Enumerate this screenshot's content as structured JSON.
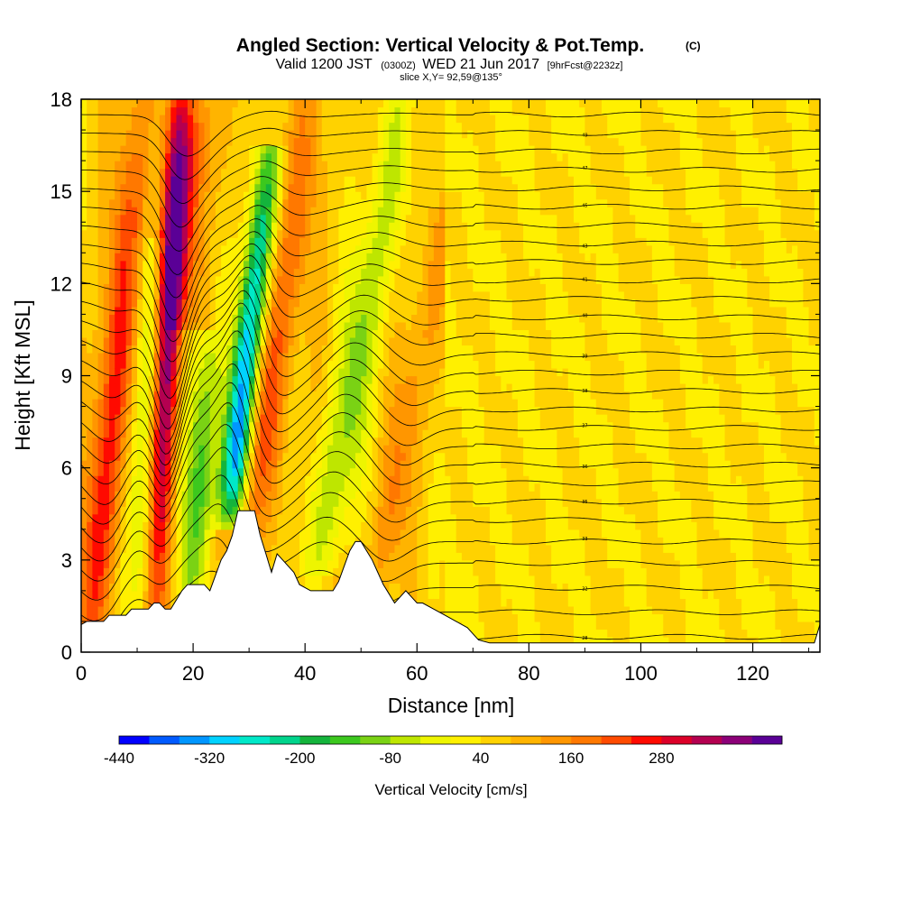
{
  "chart_data": {
    "type": "heatmap",
    "title": {
      "main": "Angled Section: Vertical Velocity & Pot.Temp.",
      "unit": "(C)",
      "valid_a": "Valid 1200 JST",
      "valid_b": "(0300Z)",
      "valid_c": "WED 21 Jun 2017",
      "valid_d": "[9hrFcst@2232z]",
      "slice": "slice X,Y= 92,59@135°"
    },
    "xlabel": "Distance [nm]",
    "ylabel": "Height [Kft MSL]",
    "xlim": [
      0,
      132
    ],
    "ylim": [
      0,
      18
    ],
    "x_ticks": [
      {
        "v": 0,
        "label": "0"
      },
      {
        "v": 20,
        "label": "20"
      },
      {
        "v": 40,
        "label": "40"
      },
      {
        "v": 60,
        "label": "60"
      },
      {
        "v": 80,
        "label": "80"
      },
      {
        "v": 100,
        "label": "100"
      },
      {
        "v": 120,
        "label": "120"
      }
    ],
    "y_ticks": [
      {
        "v": 0,
        "label": "0"
      },
      {
        "v": 3,
        "label": "3"
      },
      {
        "v": 6,
        "label": "6"
      },
      {
        "v": 9,
        "label": "9"
      },
      {
        "v": 12,
        "label": "12"
      },
      {
        "v": 15,
        "label": "15"
      },
      {
        "v": 18,
        "label": "18"
      }
    ],
    "colorbar": {
      "title": "Vertical Velocity [cm/s]",
      "min": -440,
      "step": 40,
      "colors": [
        "#0000ff",
        "#005aff",
        "#0096ff",
        "#00d2ff",
        "#00e8c8",
        "#00d48c",
        "#14b43c",
        "#3cc81e",
        "#7ad214",
        "#bee600",
        "#eef500",
        "#fff000",
        "#ffd200",
        "#ffb400",
        "#ff9600",
        "#ff7800",
        "#ff4b00",
        "#ff0a00",
        "#dc0028",
        "#b40050",
        "#8c0078",
        "#5a0096"
      ],
      "labels": [
        {
          "v": -440,
          "label": "-440"
        },
        {
          "v": -320,
          "label": "-320"
        },
        {
          "v": -200,
          "label": "-200"
        },
        {
          "v": -80,
          "label": "-80"
        },
        {
          "v": 40,
          "label": "40"
        },
        {
          "v": 160,
          "label": "160"
        },
        {
          "v": 280,
          "label": "280"
        }
      ]
    },
    "features": [
      {
        "kind": "updraft",
        "center_x": 4,
        "tilt": 0.5,
        "ybot": 0.5,
        "ytop": 18,
        "amp": 200,
        "width": 3.5,
        "peak_y": 5
      },
      {
        "kind": "downdraft",
        "center_x": 11,
        "tilt": 0.2,
        "ybot": 1.5,
        "ytop": 13,
        "amp": -140,
        "width": 2.5,
        "peak_y": 5
      },
      {
        "kind": "updraft",
        "center_x": 15.5,
        "tilt": 0.25,
        "ybot": 1.5,
        "ytop": 18,
        "amp": 350,
        "width": 2.3,
        "peak_y": 10
      },
      {
        "kind": "downdraft",
        "center_x": 21,
        "tilt": 0.3,
        "ybot": 2,
        "ytop": 10,
        "amp": -200,
        "width": 3,
        "peak_y": 6
      },
      {
        "kind": "updraft",
        "center_x": 20,
        "tilt": 0.5,
        "ybot": 11,
        "ytop": 18,
        "amp": 160,
        "width": 3.5,
        "peak_y": 16
      },
      {
        "kind": "downdraft",
        "center_x": 28,
        "tilt": 0.6,
        "ybot": 4.5,
        "ytop": 16,
        "amp": -440,
        "width": 2.5,
        "peak_y": 7
      },
      {
        "kind": "updraft",
        "center_x": 33,
        "tilt": 0.8,
        "ybot": 3.5,
        "ytop": 18,
        "amp": 150,
        "width": 4,
        "peak_y": 8
      },
      {
        "kind": "downdraft",
        "center_x": 47,
        "tilt": 0.9,
        "ybot": 3,
        "ytop": 18,
        "amp": -160,
        "width": 3.5,
        "peak_y": 7
      },
      {
        "kind": "updraft",
        "center_x": 56,
        "tilt": 0.9,
        "ybot": 2,
        "ytop": 14,
        "amp": 100,
        "width": 3,
        "peak_y": 5
      }
    ],
    "terrain": [
      [
        0,
        0.9
      ],
      [
        1,
        1.0
      ],
      [
        4,
        1.0
      ],
      [
        5,
        1.2
      ],
      [
        8,
        1.2
      ],
      [
        9,
        1.4
      ],
      [
        12,
        1.4
      ],
      [
        13,
        1.6
      ],
      [
        14,
        1.6
      ],
      [
        15,
        1.4
      ],
      [
        16,
        1.4
      ],
      [
        17,
        1.7
      ],
      [
        18,
        2.0
      ],
      [
        19,
        2.2
      ],
      [
        22,
        2.2
      ],
      [
        23,
        2.0
      ],
      [
        24,
        2.5
      ],
      [
        25,
        3.0
      ],
      [
        26,
        3.3
      ],
      [
        27,
        3.8
      ],
      [
        28,
        4.6
      ],
      [
        31,
        4.6
      ],
      [
        32,
        3.8
      ],
      [
        33,
        3.2
      ],
      [
        34,
        2.6
      ],
      [
        35,
        3.2
      ],
      [
        36,
        3.0
      ],
      [
        38,
        2.6
      ],
      [
        39,
        2.2
      ],
      [
        41,
        2.0
      ],
      [
        45,
        2.0
      ],
      [
        46,
        2.3
      ],
      [
        47,
        2.8
      ],
      [
        48,
        3.3
      ],
      [
        49,
        3.6
      ],
      [
        50,
        3.6
      ],
      [
        51,
        3.3
      ],
      [
        52,
        3.0
      ],
      [
        53,
        2.6
      ],
      [
        54,
        2.2
      ],
      [
        55,
        1.9
      ],
      [
        56,
        1.6
      ],
      [
        57,
        1.8
      ],
      [
        58,
        2.0
      ],
      [
        59,
        1.8
      ],
      [
        60,
        1.6
      ],
      [
        61,
        1.6
      ],
      [
        63,
        1.4
      ],
      [
        65,
        1.2
      ],
      [
        67,
        1.0
      ],
      [
        69,
        0.8
      ],
      [
        71,
        0.4
      ],
      [
        73,
        0.3
      ],
      [
        131,
        0.3
      ],
      [
        132,
        0.9
      ]
    ],
    "contours": [
      {
        "base": 0.5,
        "label": "28"
      },
      {
        "base": 1.3,
        "label": "30"
      },
      {
        "base": 2.1,
        "label": "32"
      },
      {
        "base": 2.9,
        "label": "32"
      },
      {
        "base": 3.6,
        "label": "33"
      },
      {
        "base": 4.3,
        "label": "34"
      },
      {
        "base": 4.9,
        "label": "35"
      },
      {
        "base": 5.5,
        "label": "35"
      },
      {
        "base": 6.1,
        "label": "36"
      },
      {
        "base": 6.7,
        "label": "36"
      },
      {
        "base": 7.3,
        "label": "37"
      },
      {
        "base": 7.9,
        "label": "37"
      },
      {
        "base": 8.5,
        "label": "38"
      },
      {
        "base": 9.1,
        "label": "38"
      },
      {
        "base": 9.7,
        "label": "39"
      },
      {
        "base": 10.3,
        "label": "39"
      },
      {
        "base": 10.9,
        "label": "40"
      },
      {
        "base": 11.5,
        "label": "40"
      },
      {
        "base": 12.1,
        "label": "41"
      },
      {
        "base": 12.7,
        "label": "42"
      },
      {
        "base": 13.3,
        "label": "43"
      },
      {
        "base": 13.9,
        "label": "44"
      },
      {
        "base": 14.5,
        "label": "45"
      },
      {
        "base": 15.1,
        "label": "46"
      },
      {
        "base": 15.7,
        "label": "47"
      },
      {
        "base": 16.3,
        "label": "48"
      },
      {
        "base": 16.9,
        "label": "49"
      },
      {
        "base": 17.5,
        "label": "50"
      }
    ]
  }
}
